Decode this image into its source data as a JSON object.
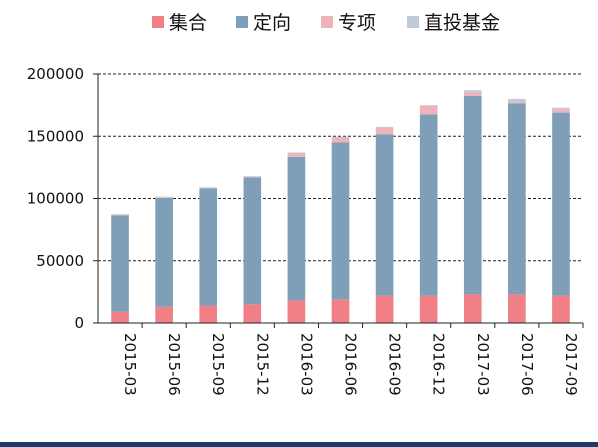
{
  "chart_data": {
    "type": "bar",
    "stacked": true,
    "title": "",
    "xlabel": "",
    "ylabel": "",
    "categories": [
      "2015-03",
      "2015-06",
      "2015-09",
      "2015-12",
      "2016-03",
      "2016-06",
      "2016-09",
      "2016-12",
      "2017-03",
      "2017-06",
      "2017-09"
    ],
    "series": [
      {
        "name": "集合",
        "color": "#f07f86",
        "values": [
          9000,
          13000,
          14000,
          15000,
          18000,
          19000,
          22000,
          22000,
          23000,
          23000,
          22000
        ]
      },
      {
        "name": "定向",
        "color": "#7f9fb8",
        "values": [
          77500,
          87500,
          94000,
          102000,
          115500,
          126000,
          129500,
          145500,
          159500,
          153500,
          147000
        ]
      },
      {
        "name": "专项",
        "color": "#efb3bb",
        "values": [
          500,
          500,
          500,
          500,
          3000,
          4000,
          5500,
          7000,
          3000,
          1000,
          3000
        ]
      },
      {
        "name": "直投基金",
        "color": "#bfcbd9",
        "values": [
          500,
          500,
          500,
          500,
          500,
          500,
          500,
          500,
          1500,
          2500,
          1000
        ]
      }
    ],
    "ylim": [
      0,
      200000
    ],
    "yticks": [
      0,
      50000,
      100000,
      150000,
      200000
    ],
    "grid": "horizontal dashed",
    "legend_position": "top"
  }
}
